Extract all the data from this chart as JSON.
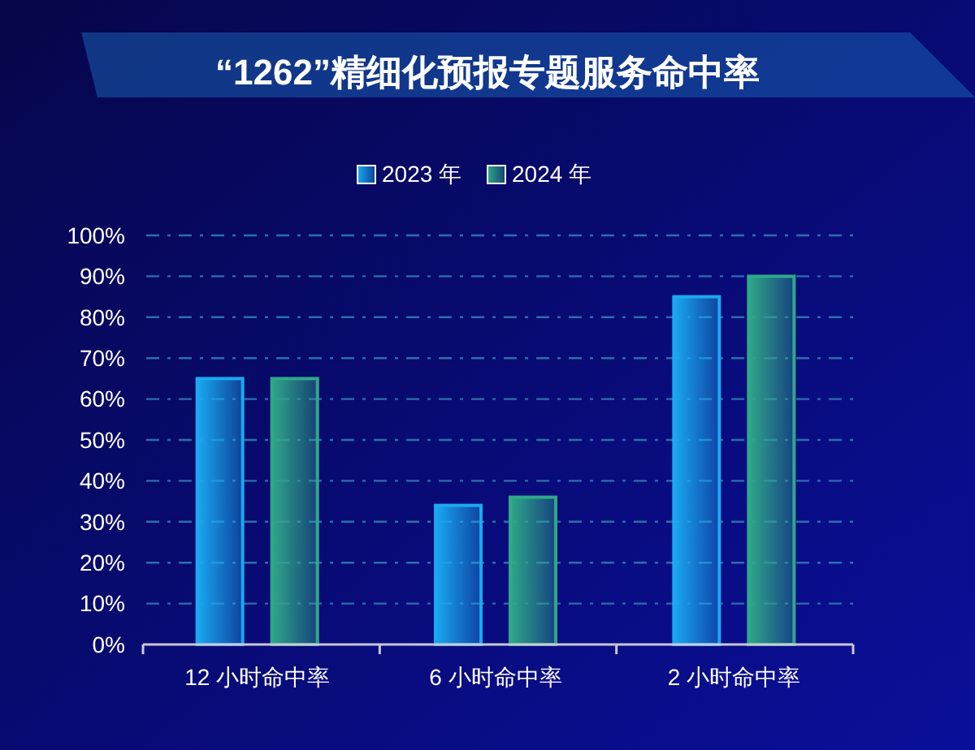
{
  "chart_data": {
    "type": "bar",
    "title": "“1262”精细化预报专题服务命中率",
    "categories": [
      "12 小时命中率",
      "6 小时命中率",
      "2 小时命中率"
    ],
    "series": [
      {
        "name": "2023 年",
        "color": "#1aa9f0",
        "values": [
          65,
          34,
          85
        ]
      },
      {
        "name": "2024 年",
        "color": "#2fa888",
        "values": [
          65,
          36,
          90
        ]
      }
    ],
    "ylim": [
      0,
      100
    ],
    "yticks": [
      {
        "value": 0,
        "label": "0%"
      },
      {
        "value": 10,
        "label": "10%"
      },
      {
        "value": 20,
        "label": "20%"
      },
      {
        "value": 30,
        "label": "30%"
      },
      {
        "value": 40,
        "label": "40%"
      },
      {
        "value": 50,
        "label": "50%"
      },
      {
        "value": 60,
        "label": "60%"
      },
      {
        "value": 70,
        "label": "70%"
      },
      {
        "value": 80,
        "label": "80%"
      },
      {
        "value": 90,
        "label": "90%"
      },
      {
        "value": 100,
        "label": "100%"
      }
    ],
    "grid": "y",
    "legend": "top"
  }
}
